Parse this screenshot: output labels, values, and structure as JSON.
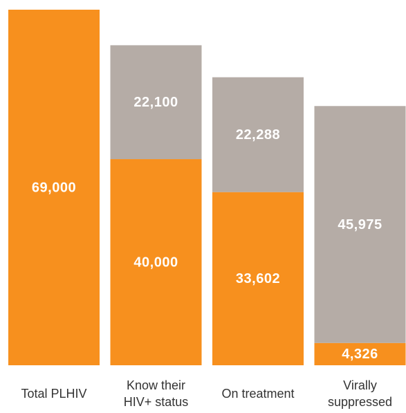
{
  "chart_data": {
    "type": "stacked_bar",
    "categories": [
      "Total PLHIV",
      "Know their\nHIV+ status",
      "On treatment",
      "Virally\nsuppressed"
    ],
    "series": [
      {
        "color": "#f7901e",
        "values": [
          69000,
          40000,
          33602,
          4326
        ],
        "value_labels": [
          "69,000",
          "40,000",
          "33,602",
          "4,326"
        ]
      },
      {
        "color": "#b5aca6",
        "values": [
          null,
          22100,
          22288,
          45975
        ],
        "value_labels": [
          null,
          "22,100",
          "22,288",
          "45,975"
        ]
      }
    ],
    "ylim": [
      0,
      69000
    ]
  }
}
